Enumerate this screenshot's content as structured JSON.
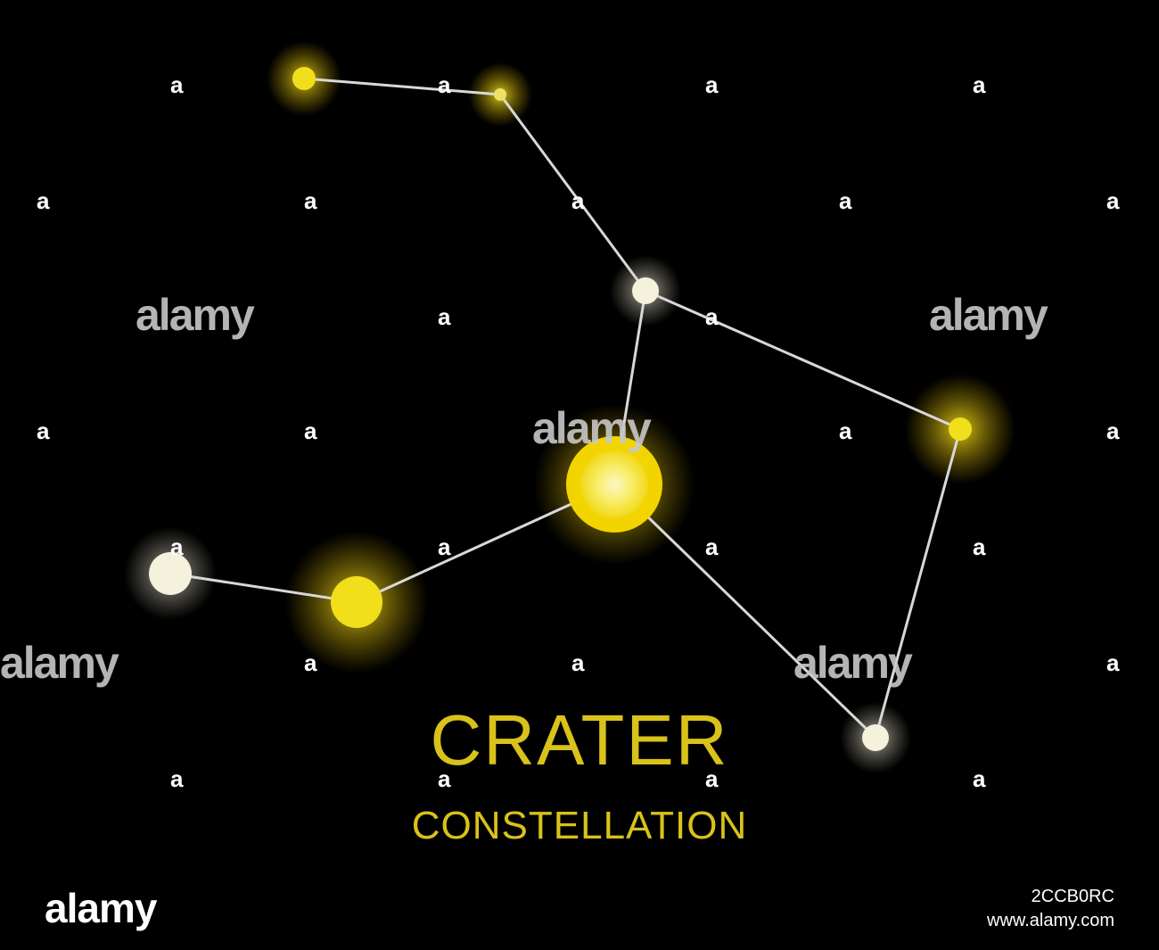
{
  "artwork": {
    "title": "CRATER",
    "subtitle": "CONSTELLATION",
    "colors": {
      "background": "#000000",
      "title": "#d9c21a",
      "line": "#d8d8d8",
      "star_yellow": "#f2df1c",
      "star_white": "#f4f1dc"
    }
  },
  "watermark": {
    "small_mark": "a",
    "large_mark": "alamy"
  },
  "footer": {
    "logo": "alamy",
    "image_id": "2CCB0RC",
    "site": "www.alamy.com"
  }
}
